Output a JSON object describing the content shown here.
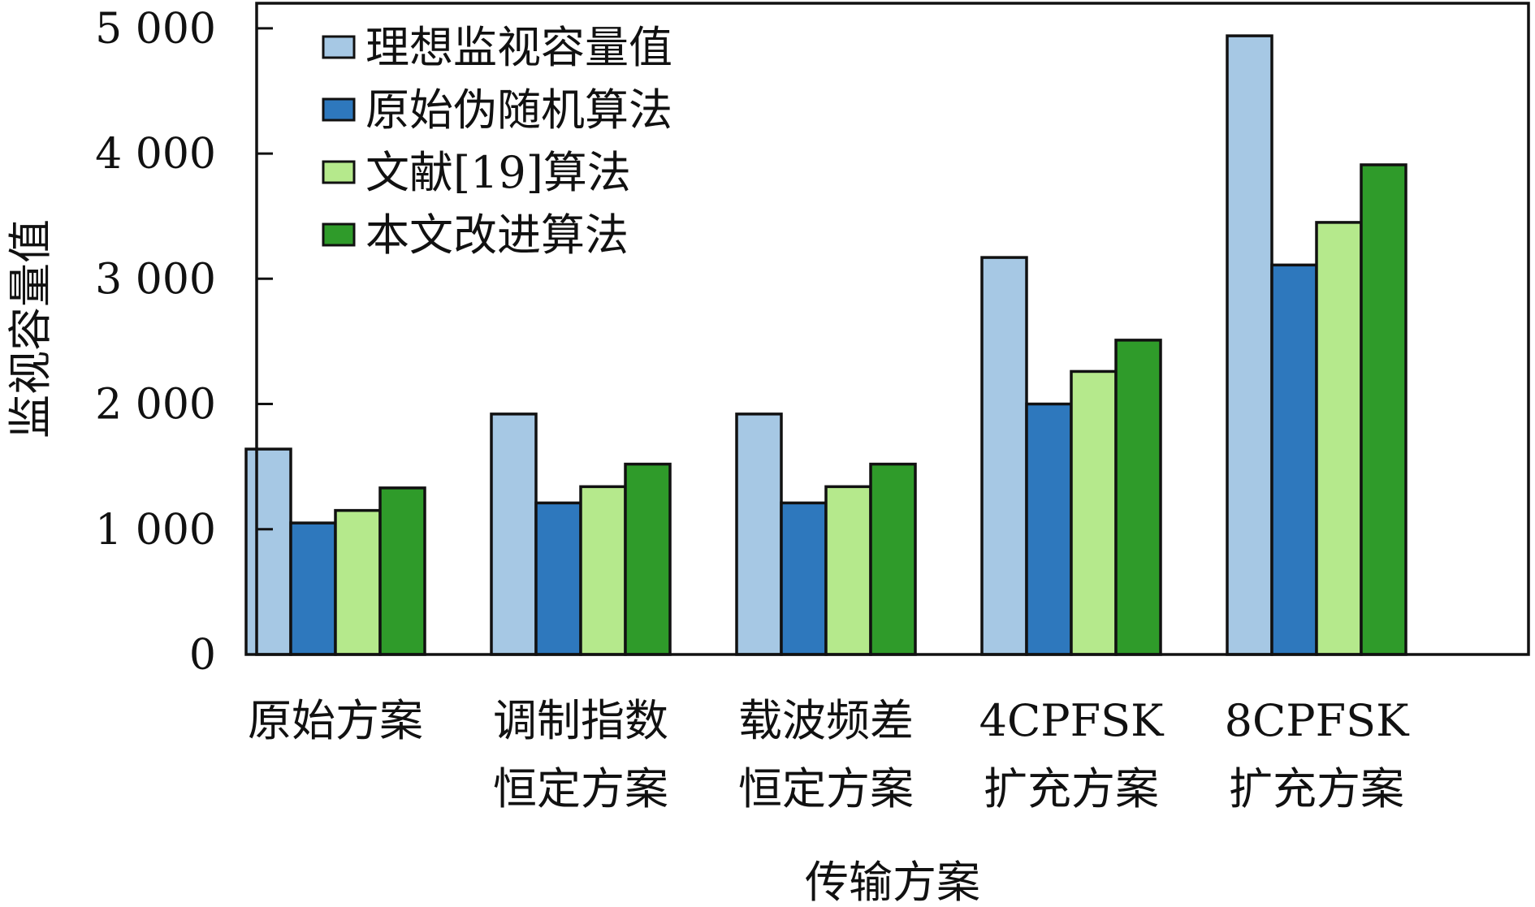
{
  "chart_data": {
    "type": "bar",
    "title": "",
    "xlabel": "传输方案",
    "ylabel": "监视容量值",
    "ylim": [
      0,
      5200
    ],
    "yticks": [
      0,
      1000,
      2000,
      3000,
      4000,
      5000
    ],
    "ytick_labels": [
      "0",
      "1 000",
      "2 000",
      "3 000",
      "4 000",
      "5 000"
    ],
    "grid": false,
    "legend_position": "top-left",
    "categories": [
      [
        "原始方案"
      ],
      [
        "调制指数",
        "恒定方案"
      ],
      [
        "载波频差",
        "恒定方案"
      ],
      [
        "4CPFSK",
        "扩充方案"
      ],
      [
        "8CPFSK",
        "扩充方案"
      ]
    ],
    "series": [
      {
        "name": "理想监视容量值",
        "color": "#a6c8e4",
        "values": [
          1640,
          1920,
          1920,
          3170,
          4940
        ]
      },
      {
        "name": "原始伪随机算法",
        "color": "#2e78bd",
        "values": [
          1050,
          1210,
          1210,
          2000,
          3110
        ]
      },
      {
        "name": "文献[19]算法",
        "color": "#b5e98c",
        "values": [
          1150,
          1340,
          1340,
          2260,
          3450
        ]
      },
      {
        "name": "本文改进算法",
        "color": "#2f9b2a",
        "values": [
          1330,
          1520,
          1520,
          2510,
          3910
        ]
      }
    ]
  }
}
